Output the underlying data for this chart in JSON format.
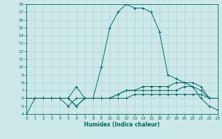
{
  "xlabel": "Humidex (Indice chaleur)",
  "xlim": [
    0,
    23
  ],
  "ylim": [
    4,
    18
  ],
  "xticks": [
    0,
    1,
    2,
    3,
    4,
    5,
    6,
    7,
    8,
    9,
    10,
    11,
    12,
    13,
    14,
    15,
    16,
    17,
    18,
    19,
    20,
    21,
    22,
    23
  ],
  "yticks": [
    4,
    5,
    6,
    7,
    8,
    9,
    10,
    11,
    12,
    13,
    14,
    15,
    16,
    17,
    18
  ],
  "bg_color": "#cce8e8",
  "grid_color": "#aacccc",
  "line_color": "#006666",
  "lines": [
    {
      "x": [
        0,
        1,
        2,
        3,
        4,
        5,
        6,
        7,
        8,
        9,
        10,
        11,
        12,
        13,
        14,
        15,
        16,
        17,
        18,
        19,
        20,
        21,
        22,
        23
      ],
      "y": [
        4,
        6,
        6,
        6,
        6,
        5,
        6,
        6,
        6,
        10,
        15,
        17,
        18,
        17.5,
        17.5,
        17,
        14.5,
        9,
        8.5,
        8,
        7.5,
        6,
        5,
        4.5
      ]
    },
    {
      "x": [
        0,
        1,
        2,
        3,
        4,
        5,
        6,
        7,
        8,
        9,
        10,
        11,
        12,
        13,
        14,
        15,
        16,
        17,
        18,
        19,
        20,
        21,
        22,
        23
      ],
      "y": [
        6,
        6,
        6,
        6,
        6,
        6,
        5,
        6,
        6,
        6,
        6,
        6.5,
        7,
        7,
        7.5,
        7.5,
        7.5,
        7.5,
        8,
        8,
        8,
        7.5,
        6,
        6
      ]
    },
    {
      "x": [
        0,
        1,
        2,
        3,
        4,
        5,
        6,
        7,
        8,
        9,
        10,
        11,
        12,
        13,
        14,
        15,
        16,
        17,
        18,
        19,
        20,
        21,
        22,
        23
      ],
      "y": [
        6,
        6,
        6,
        6,
        6,
        6,
        7.5,
        6,
        6,
        6,
        6,
        6.5,
        7,
        7,
        7,
        7,
        7,
        7,
        7,
        7.5,
        7.5,
        7,
        6,
        6
      ]
    },
    {
      "x": [
        0,
        1,
        2,
        3,
        4,
        5,
        6,
        7,
        8,
        9,
        10,
        11,
        12,
        13,
        14,
        15,
        16,
        17,
        18,
        19,
        20,
        21,
        22,
        23
      ],
      "y": [
        6,
        6,
        6,
        6,
        6,
        6,
        5,
        6,
        6,
        6,
        6,
        6,
        6,
        6.5,
        6.5,
        6.5,
        6.5,
        6.5,
        6.5,
        6.5,
        6.5,
        6.5,
        6,
        6
      ]
    }
  ]
}
